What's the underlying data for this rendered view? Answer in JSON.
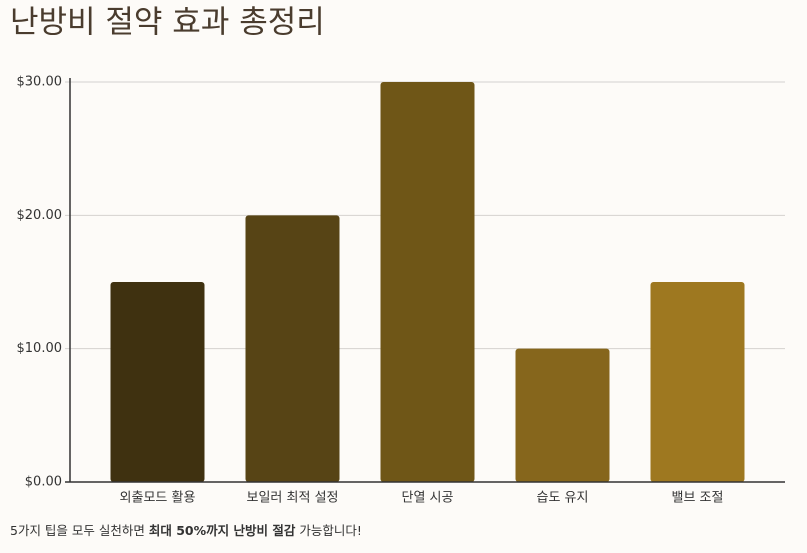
{
  "chart_data": {
    "type": "bar",
    "title": "난방비 절약 효과 총정리",
    "categories": [
      "외출모드 활용",
      "보일러 최적 설정",
      "단열 시공",
      "습도 유지",
      "밸브 조절"
    ],
    "values": [
      15,
      20,
      30,
      10,
      15
    ],
    "colors": [
      "#3f3110",
      "#574415",
      "#6f5617",
      "#86661c",
      "#9e7820"
    ],
    "ylim": [
      0,
      30
    ],
    "yticks": [
      {
        "value": 0,
        "label": "$0.00"
      },
      {
        "value": 10,
        "label": "$10.00"
      },
      {
        "value": 20,
        "label": "$20.00"
      },
      {
        "value": 30,
        "label": "$30.00"
      }
    ],
    "grid": true,
    "footnote": [
      "5가지 팁을 모두 실천하면 ",
      "최대 50%까지 난방비 절감",
      " 가능합니다!"
    ]
  }
}
